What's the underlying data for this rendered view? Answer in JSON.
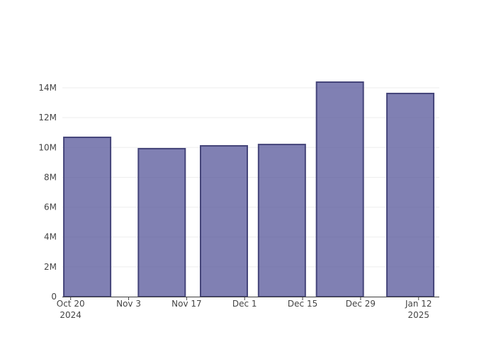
{
  "chart_data": {
    "type": "bar",
    "x": [
      "2024-10-24",
      "2024-11-11",
      "2024-11-26",
      "2024-12-10",
      "2024-12-24",
      "2025-01-10"
    ],
    "values": [
      10680000,
      9920000,
      10110000,
      10200000,
      14380000,
      13620000
    ],
    "color": "#555599",
    "edge_color": "#45457a",
    "xlim": [
      "2024-10-18",
      "2025-01-17"
    ],
    "xticks": [
      {
        "value": "2024-10-20",
        "label": "Oct 20\n2024"
      },
      {
        "value": "2024-11-03",
        "label": "Nov 3"
      },
      {
        "value": "2024-11-17",
        "label": "Nov 17"
      },
      {
        "value": "2024-12-01",
        "label": "Dec 1"
      },
      {
        "value": "2024-12-15",
        "label": "Dec 15"
      },
      {
        "value": "2024-12-29",
        "label": "Dec 29"
      },
      {
        "value": "2025-01-12",
        "label": "Jan 12\n2025"
      }
    ],
    "ylim": [
      0,
      15140000
    ],
    "yticks": [
      0,
      {
        "value": 2000000,
        "label": "2M"
      },
      {
        "value": 4000000,
        "label": "4M"
      },
      {
        "value": 6000000,
        "label": "6M"
      },
      {
        "value": 8000000,
        "label": "8M"
      },
      {
        "value": 10000000,
        "label": "10M"
      },
      {
        "value": 12000000,
        "label": "12M"
      },
      {
        "value": 14000000,
        "label": "14M"
      }
    ],
    "grid": true
  }
}
